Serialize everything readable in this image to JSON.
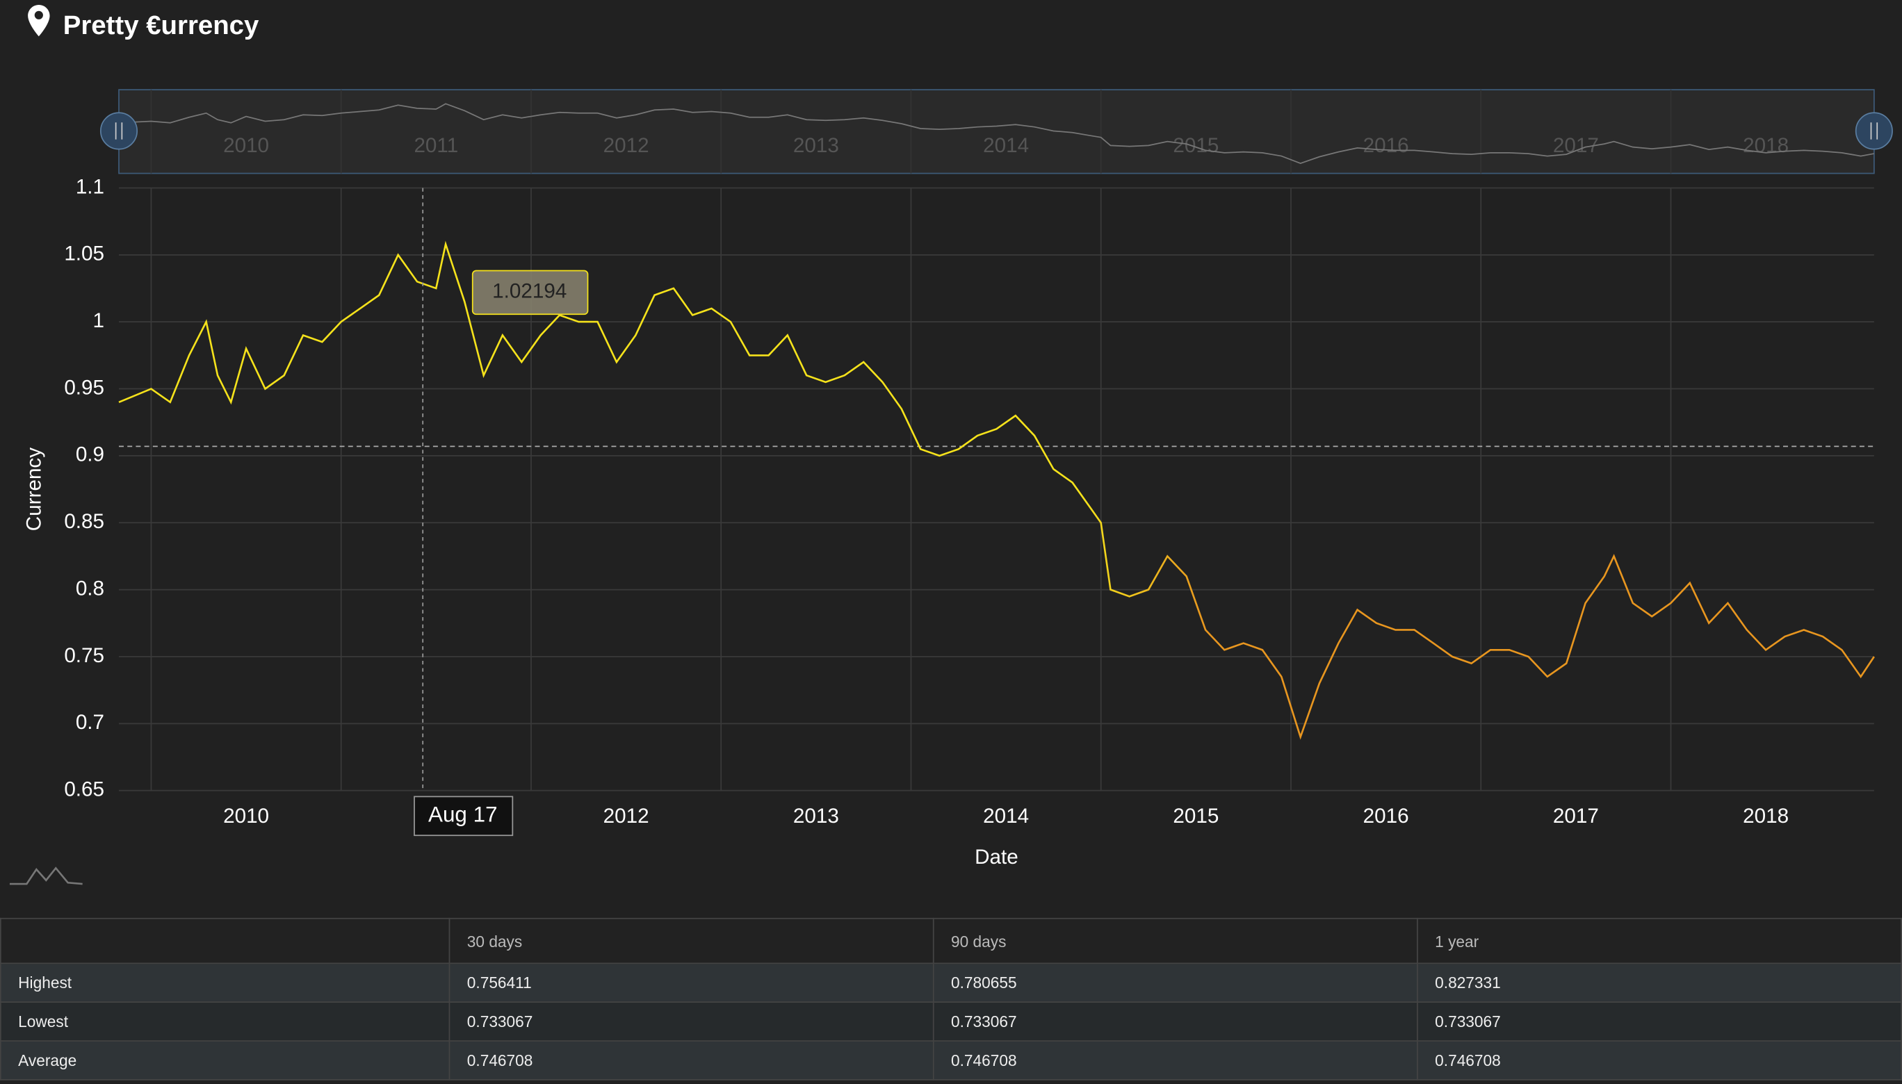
{
  "header": {
    "title": "Pretty €urrency"
  },
  "chart_data": {
    "type": "line",
    "y_label": "Currency",
    "x_label": "Date",
    "xlim": [
      2009.83,
      2019.07
    ],
    "xticks": [
      2010,
      2011,
      2012,
      2013,
      2014,
      2015,
      2016,
      2017,
      2018
    ],
    "ylim": [
      0.65,
      1.1
    ],
    "yticks": [
      0.65,
      0.7,
      0.75,
      0.8,
      0.85,
      0.9,
      0.95,
      1,
      1.05,
      1.1
    ],
    "grid": true,
    "x": [
      2009.83,
      2010.0,
      2010.1,
      2010.2,
      2010.29,
      2010.35,
      2010.42,
      2010.5,
      2010.6,
      2010.7,
      2010.8,
      2010.9,
      2011.0,
      2011.1,
      2011.2,
      2011.3,
      2011.4,
      2011.5,
      2011.55,
      2011.65,
      2011.75,
      2011.85,
      2011.95,
      2012.05,
      2012.15,
      2012.25,
      2012.35,
      2012.45,
      2012.55,
      2012.65,
      2012.75,
      2012.85,
      2012.95,
      2013.05,
      2013.15,
      2013.25,
      2013.35,
      2013.45,
      2013.55,
      2013.65,
      2013.75,
      2013.85,
      2013.95,
      2014.05,
      2014.15,
      2014.25,
      2014.35,
      2014.45,
      2014.55,
      2014.65,
      2014.75,
      2014.85,
      2014.95,
      2015.0,
      2015.05,
      2015.15,
      2015.25,
      2015.35,
      2015.45,
      2015.55,
      2015.65,
      2015.75,
      2015.85,
      2015.95,
      2016.05,
      2016.15,
      2016.25,
      2016.35,
      2016.45,
      2016.55,
      2016.65,
      2016.75,
      2016.85,
      2016.95,
      2017.05,
      2017.15,
      2017.25,
      2017.35,
      2017.45,
      2017.55,
      2017.65,
      2017.7,
      2017.8,
      2017.9,
      2018.0,
      2018.1,
      2018.2,
      2018.3,
      2018.4,
      2018.5,
      2018.6,
      2018.7,
      2018.8,
      2018.9,
      2019.0,
      2019.07
    ],
    "series": [
      {
        "colors": [
          "#f5e21b",
          "#e8961f"
        ],
        "values": [
          0.94,
          0.95,
          0.94,
          0.975,
          1.0,
          0.96,
          0.94,
          0.98,
          0.95,
          0.96,
          0.99,
          0.985,
          1.0,
          1.01,
          1.02,
          1.05,
          1.03,
          1.025,
          1.058,
          1.015,
          0.96,
          0.99,
          0.97,
          0.99,
          1.005,
          1.0,
          1.0,
          0.97,
          0.99,
          1.02,
          1.025,
          1.005,
          1.01,
          1.0,
          0.975,
          0.975,
          0.99,
          0.96,
          0.955,
          0.96,
          0.97,
          0.955,
          0.935,
          0.905,
          0.9,
          0.905,
          0.915,
          0.92,
          0.93,
          0.915,
          0.89,
          0.88,
          0.86,
          0.85,
          0.8,
          0.795,
          0.8,
          0.825,
          0.81,
          0.77,
          0.755,
          0.76,
          0.755,
          0.735,
          0.69,
          0.73,
          0.76,
          0.785,
          0.775,
          0.77,
          0.77,
          0.76,
          0.75,
          0.745,
          0.755,
          0.755,
          0.75,
          0.735,
          0.745,
          0.79,
          0.81,
          0.825,
          0.79,
          0.78,
          0.79,
          0.805,
          0.775,
          0.79,
          0.77,
          0.755,
          0.765,
          0.77,
          0.765,
          0.755,
          0.735,
          0.75
        ]
      }
    ],
    "average_line": 0.907,
    "crosshair": {
      "x": 2011.43,
      "x_label": "Aug 17",
      "value": 1.02194,
      "value_label": "1.02194"
    }
  },
  "table": {
    "columns": [
      "30 days",
      "90 days",
      "1 year"
    ],
    "rows": [
      [
        "Highest",
        "0.756411",
        "0.780655",
        "0.827331"
      ],
      [
        "Lowest",
        "0.733067",
        "0.733067",
        "0.733067"
      ],
      [
        "Average",
        "0.746708",
        "0.746708",
        "0.746708"
      ]
    ]
  }
}
